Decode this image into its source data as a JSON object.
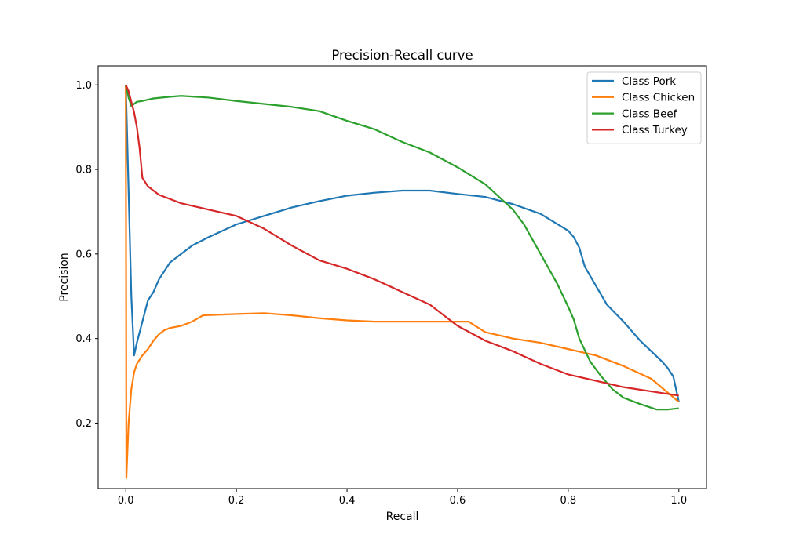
{
  "chart_data": {
    "type": "line",
    "title": "Precision-Recall curve",
    "xlabel": "Recall",
    "ylabel": "Precision",
    "xlim": [
      -0.05,
      1.05
    ],
    "ylim": [
      0.045,
      1.045
    ],
    "x_ticks": [
      0.0,
      0.2,
      0.4,
      0.6,
      0.8,
      1.0
    ],
    "x_tick_labels": [
      "0.0",
      "0.2",
      "0.4",
      "0.6",
      "0.8",
      "1.0"
    ],
    "y_ticks": [
      0.2,
      0.4,
      0.6,
      0.8,
      1.0
    ],
    "y_tick_labels": [
      "0.2",
      "0.4",
      "0.6",
      "0.8",
      "1.0"
    ],
    "grid": false,
    "legend_position": "top-right",
    "series": [
      {
        "name": "Class Pork",
        "color": "#1f77b4",
        "points": [
          [
            0.0,
            1.0
          ],
          [
            0.005,
            0.75
          ],
          [
            0.01,
            0.5
          ],
          [
            0.015,
            0.36
          ],
          [
            0.02,
            0.39
          ],
          [
            0.03,
            0.44
          ],
          [
            0.04,
            0.49
          ],
          [
            0.05,
            0.51
          ],
          [
            0.06,
            0.54
          ],
          [
            0.07,
            0.56
          ],
          [
            0.08,
            0.58
          ],
          [
            0.1,
            0.6
          ],
          [
            0.12,
            0.62
          ],
          [
            0.15,
            0.64
          ],
          [
            0.2,
            0.67
          ],
          [
            0.25,
            0.69
          ],
          [
            0.3,
            0.71
          ],
          [
            0.35,
            0.725
          ],
          [
            0.4,
            0.738
          ],
          [
            0.45,
            0.745
          ],
          [
            0.5,
            0.75
          ],
          [
            0.55,
            0.75
          ],
          [
            0.6,
            0.742
          ],
          [
            0.65,
            0.735
          ],
          [
            0.7,
            0.718
          ],
          [
            0.75,
            0.695
          ],
          [
            0.8,
            0.655
          ],
          [
            0.81,
            0.64
          ],
          [
            0.82,
            0.615
          ],
          [
            0.83,
            0.57
          ],
          [
            0.85,
            0.525
          ],
          [
            0.87,
            0.48
          ],
          [
            0.9,
            0.44
          ],
          [
            0.93,
            0.395
          ],
          [
            0.95,
            0.37
          ],
          [
            0.97,
            0.345
          ],
          [
            0.98,
            0.33
          ],
          [
            0.99,
            0.31
          ],
          [
            1.0,
            0.25
          ]
        ]
      },
      {
        "name": "Class Chicken",
        "color": "#ff7f0e",
        "points": [
          [
            0.0,
            1.0
          ],
          [
            0.001,
            0.07
          ],
          [
            0.005,
            0.2
          ],
          [
            0.01,
            0.28
          ],
          [
            0.015,
            0.32
          ],
          [
            0.02,
            0.34
          ],
          [
            0.03,
            0.36
          ],
          [
            0.04,
            0.375
          ],
          [
            0.05,
            0.395
          ],
          [
            0.06,
            0.41
          ],
          [
            0.07,
            0.42
          ],
          [
            0.08,
            0.425
          ],
          [
            0.1,
            0.43
          ],
          [
            0.12,
            0.44
          ],
          [
            0.14,
            0.455
          ],
          [
            0.2,
            0.458
          ],
          [
            0.25,
            0.46
          ],
          [
            0.3,
            0.455
          ],
          [
            0.35,
            0.448
          ],
          [
            0.4,
            0.443
          ],
          [
            0.45,
            0.44
          ],
          [
            0.5,
            0.44
          ],
          [
            0.55,
            0.44
          ],
          [
            0.6,
            0.44
          ],
          [
            0.62,
            0.44
          ],
          [
            0.65,
            0.415
          ],
          [
            0.7,
            0.4
          ],
          [
            0.75,
            0.39
          ],
          [
            0.8,
            0.375
          ],
          [
            0.85,
            0.36
          ],
          [
            0.9,
            0.335
          ],
          [
            0.95,
            0.305
          ],
          [
            1.0,
            0.25
          ]
        ]
      },
      {
        "name": "Class Beef",
        "color": "#2ca02c",
        "points": [
          [
            0.0,
            1.0
          ],
          [
            0.005,
            0.97
          ],
          [
            0.01,
            0.95
          ],
          [
            0.015,
            0.955
          ],
          [
            0.02,
            0.96
          ],
          [
            0.03,
            0.962
          ],
          [
            0.05,
            0.968
          ],
          [
            0.08,
            0.972
          ],
          [
            0.1,
            0.974
          ],
          [
            0.15,
            0.97
          ],
          [
            0.2,
            0.962
          ],
          [
            0.25,
            0.955
          ],
          [
            0.3,
            0.948
          ],
          [
            0.35,
            0.938
          ],
          [
            0.4,
            0.915
          ],
          [
            0.45,
            0.895
          ],
          [
            0.5,
            0.865
          ],
          [
            0.55,
            0.84
          ],
          [
            0.6,
            0.805
          ],
          [
            0.65,
            0.765
          ],
          [
            0.7,
            0.705
          ],
          [
            0.72,
            0.67
          ],
          [
            0.75,
            0.6
          ],
          [
            0.78,
            0.53
          ],
          [
            0.8,
            0.475
          ],
          [
            0.81,
            0.445
          ],
          [
            0.82,
            0.4
          ],
          [
            0.84,
            0.345
          ],
          [
            0.86,
            0.31
          ],
          [
            0.88,
            0.28
          ],
          [
            0.9,
            0.26
          ],
          [
            0.93,
            0.245
          ],
          [
            0.96,
            0.232
          ],
          [
            0.98,
            0.232
          ],
          [
            1.0,
            0.235
          ]
        ]
      },
      {
        "name": "Class Turkey",
        "color": "#d62728",
        "points": [
          [
            0.0,
            1.0
          ],
          [
            0.005,
            0.985
          ],
          [
            0.01,
            0.96
          ],
          [
            0.015,
            0.935
          ],
          [
            0.02,
            0.9
          ],
          [
            0.025,
            0.85
          ],
          [
            0.03,
            0.78
          ],
          [
            0.04,
            0.76
          ],
          [
            0.05,
            0.75
          ],
          [
            0.06,
            0.74
          ],
          [
            0.08,
            0.73
          ],
          [
            0.1,
            0.72
          ],
          [
            0.15,
            0.705
          ],
          [
            0.2,
            0.69
          ],
          [
            0.25,
            0.66
          ],
          [
            0.3,
            0.62
          ],
          [
            0.35,
            0.585
          ],
          [
            0.4,
            0.565
          ],
          [
            0.45,
            0.54
          ],
          [
            0.5,
            0.51
          ],
          [
            0.55,
            0.48
          ],
          [
            0.58,
            0.45
          ],
          [
            0.6,
            0.43
          ],
          [
            0.65,
            0.395
          ],
          [
            0.7,
            0.37
          ],
          [
            0.75,
            0.34
          ],
          [
            0.8,
            0.315
          ],
          [
            0.85,
            0.3
          ],
          [
            0.9,
            0.285
          ],
          [
            0.95,
            0.275
          ],
          [
            1.0,
            0.265
          ]
        ]
      }
    ]
  }
}
